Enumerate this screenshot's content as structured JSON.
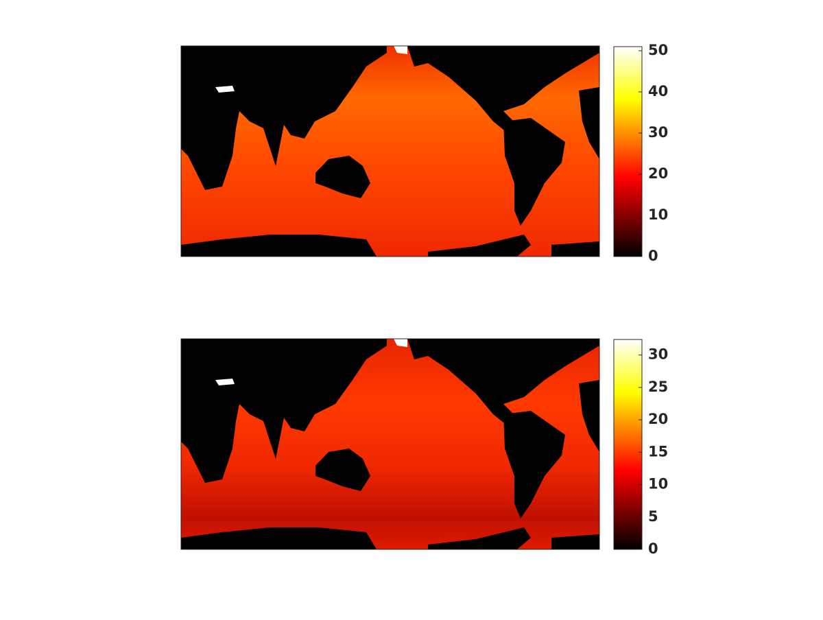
{
  "chart_data": [
    {
      "type": "heatmap",
      "colormap": "hot",
      "clim": [
        0,
        51
      ],
      "colorbar_ticks": [
        0,
        10,
        20,
        30,
        40,
        50
      ]
    },
    {
      "type": "heatmap",
      "colormap": "hot",
      "clim": [
        0,
        32.4
      ],
      "colorbar_ticks": [
        0,
        5,
        10,
        15,
        20,
        25,
        30
      ]
    }
  ]
}
